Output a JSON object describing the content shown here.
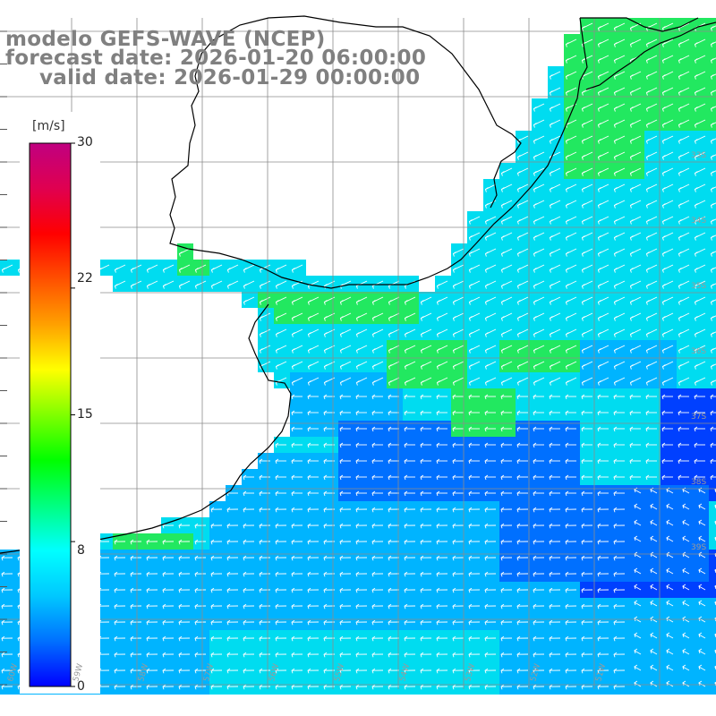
{
  "header": {
    "model_line": "modelo GEFS-WAVE (NCEP)",
    "forecast_line": "forecast date: 2026-01-20 06:00:00",
    "valid_line": "valid date: 2026-01-29 00:00:00"
  },
  "colorbar": {
    "unit": "[m/s]",
    "min": 0,
    "max": 30,
    "ticks": [
      "30",
      "22",
      "15",
      "8",
      "0"
    ],
    "tick_values": [
      30,
      22,
      15,
      8,
      0
    ],
    "colors": [
      "#0000ff",
      "#0070ff",
      "#00c8ff",
      "#00ffff",
      "#00ff80",
      "#00ff00",
      "#80ff00",
      "#ffff00",
      "#ffa000",
      "#ff5000",
      "#ff0000",
      "#e00050",
      "#c00080"
    ]
  },
  "map": {
    "latitude_labels": [
      "33S",
      "34S",
      "35S",
      "36S",
      "37S",
      "38S",
      "39S"
    ],
    "longitude_labels": [
      "60W",
      "59W",
      "58W",
      "57W",
      "56W",
      "55W",
      "54W",
      "53W",
      "52W",
      "51W"
    ],
    "field_colors": {
      "green": "#22e860",
      "cyan": "#00dcf0",
      "lightblue": "#00b4ff",
      "blue": "#0070ff",
      "darkblue": "#0040ff"
    },
    "wind_direction": "from east / south-east",
    "arrow_color": "#ffffff",
    "grid_color": "#8c8c8c",
    "coast_color": "#000000"
  }
}
